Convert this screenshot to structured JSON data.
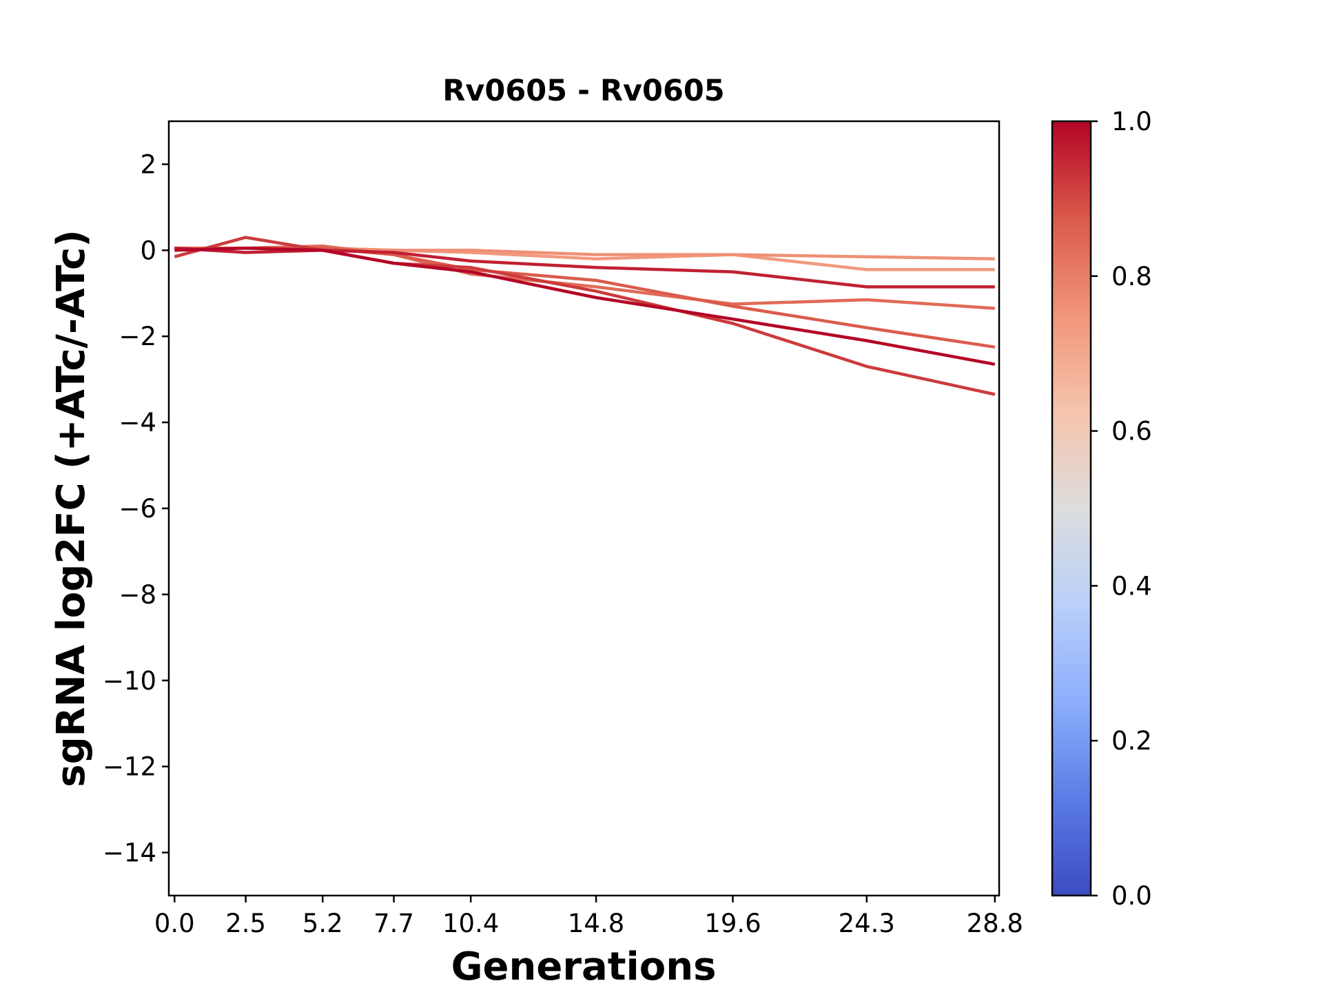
{
  "chart_data": {
    "type": "line",
    "title": "Rv0605 - Rv0605",
    "xlabel": "Generations",
    "ylabel": "sgRNA log2FC (+ATc/-ATc)",
    "x": [
      0.0,
      2.5,
      5.2,
      7.7,
      10.4,
      14.8,
      19.6,
      24.3,
      28.8
    ],
    "x_tick_labels": [
      "0.0",
      "2.5",
      "5.2",
      "7.7",
      "10.4",
      "14.8",
      "19.6",
      "24.3",
      "28.8"
    ],
    "xlim": [
      -0.2,
      28.95
    ],
    "ylim": [
      -15,
      3
    ],
    "y_ticks": [
      2,
      0,
      -2,
      -4,
      -6,
      -8,
      -10,
      -12,
      -14
    ],
    "y_tick_labels": [
      "2",
      "0",
      "−2",
      "−4",
      "−6",
      "−8",
      "−10",
      "−12",
      "−14"
    ],
    "grid": false,
    "colormap": "coolwarm",
    "colorbar": {
      "range": [
        0.0,
        1.0
      ],
      "ticks": [
        0.0,
        0.2,
        0.4,
        0.6,
        0.8,
        1.0
      ],
      "tick_labels": [
        "0.0",
        "0.2",
        "0.4",
        "0.6",
        "0.8",
        "1.0"
      ]
    },
    "series": [
      {
        "colorvalue": 0.74,
        "values": [
          0.05,
          0.05,
          0.05,
          0.0,
          -0.05,
          -0.2,
          -0.1,
          -0.45,
          -0.45
        ]
      },
      {
        "colorvalue": 0.76,
        "values": [
          0.05,
          0.05,
          0.05,
          0.0,
          0.0,
          -0.1,
          -0.1,
          -0.15,
          -0.2
        ]
      },
      {
        "colorvalue": 0.84,
        "values": [
          0.05,
          0.05,
          0.1,
          -0.1,
          -0.55,
          -0.85,
          -1.25,
          -1.15,
          -1.35
        ]
      },
      {
        "colorvalue": 0.87,
        "values": [
          0.05,
          0.05,
          0.05,
          -0.1,
          -0.45,
          -0.7,
          -1.3,
          -1.8,
          -2.25
        ]
      },
      {
        "colorvalue": 0.92,
        "values": [
          -0.15,
          0.3,
          0.0,
          -0.3,
          -0.4,
          -0.95,
          -1.7,
          -2.7,
          -3.35
        ]
      },
      {
        "colorvalue": 0.96,
        "values": [
          0.05,
          -0.05,
          0.0,
          -0.05,
          -0.25,
          -0.4,
          -0.5,
          -0.85,
          -0.85
        ]
      },
      {
        "colorvalue": 1.0,
        "values": [
          0.0,
          0.05,
          0.0,
          -0.3,
          -0.5,
          -1.1,
          -1.6,
          -2.1,
          -2.65
        ]
      }
    ]
  }
}
